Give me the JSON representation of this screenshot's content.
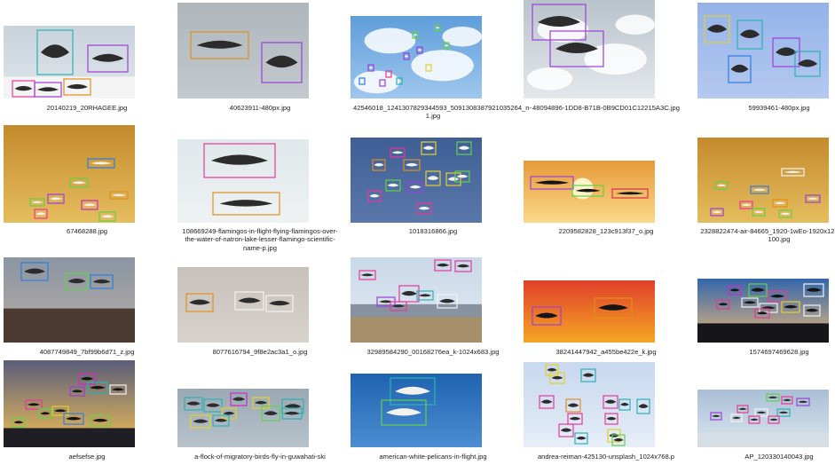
{
  "files": [
    {
      "name": "20140219_20RHAGEE.jpg",
      "scene": "snow"
    },
    {
      "name": "40623911-480px.jpg",
      "scene": "grey"
    },
    {
      "name": "42546018_1241307829344593_5091308387921035264_n-1.jpg",
      "scene": "cloudblue"
    },
    {
      "name": "48094896-1DD8-B71B-0B9CD01C12215A3C.jpg",
      "scene": "cloudwhite"
    },
    {
      "name": "59939461-480px.jpg",
      "scene": "lightblue"
    },
    {
      "name": "67468288.jpg",
      "scene": "goldsky"
    },
    {
      "name": "108669249-flamingos-in-flight-flying-flamingos-over-the-water-of-natron-lake-lesser-flamingo-scientific-name-p.jpg",
      "scene": "pale"
    },
    {
      "name": "1018316866.jpg",
      "scene": "navy"
    },
    {
      "name": "2209582828_123c913f37_o.jpg",
      "scene": "sunset"
    },
    {
      "name": "2328822474-air-84665_1920-1wEo-1920x1280-MM-100.jpg",
      "scene": "goldsky"
    },
    {
      "name": "4087749849_7bf99b6d71_z.jpg",
      "scene": "dusktrees"
    },
    {
      "name": "8077616794_9f8e2ac3a1_o.jpg",
      "scene": "beige"
    },
    {
      "name": "32989584290_00168276ea_k-1024x683.jpg",
      "scene": "mountains"
    },
    {
      "name": "38241447942_a455be422e_k.jpg",
      "scene": "redorange"
    },
    {
      "name": "1574697469628.jpg",
      "scene": "reeds"
    },
    {
      "name": "aefsefse.jpg",
      "scene": "duskhills"
    },
    {
      "name": "a-flock-of-migratory-birds-fly-in-guwahati-ski",
      "scene": "overcast"
    },
    {
      "name": "american-white-pelicans-in-flight.jpg",
      "scene": "deepblue"
    },
    {
      "name": "andrea-reiman-425130-unsplash_1024x768.p",
      "scene": "paleblue"
    },
    {
      "name": "AP_120330140043.jpg",
      "scene": "sea"
    }
  ],
  "box_colors": {
    "teal": "#29b3b3",
    "purple": "#9b3fd9",
    "orange": "#e0901c",
    "pink": "#e8379a",
    "yellow": "#e6cf2a",
    "green": "#62d14a",
    "blue": "#2e7de0",
    "magenta": "#cc2bc4",
    "white": "#f2f2f2",
    "red": "#d9304d"
  }
}
